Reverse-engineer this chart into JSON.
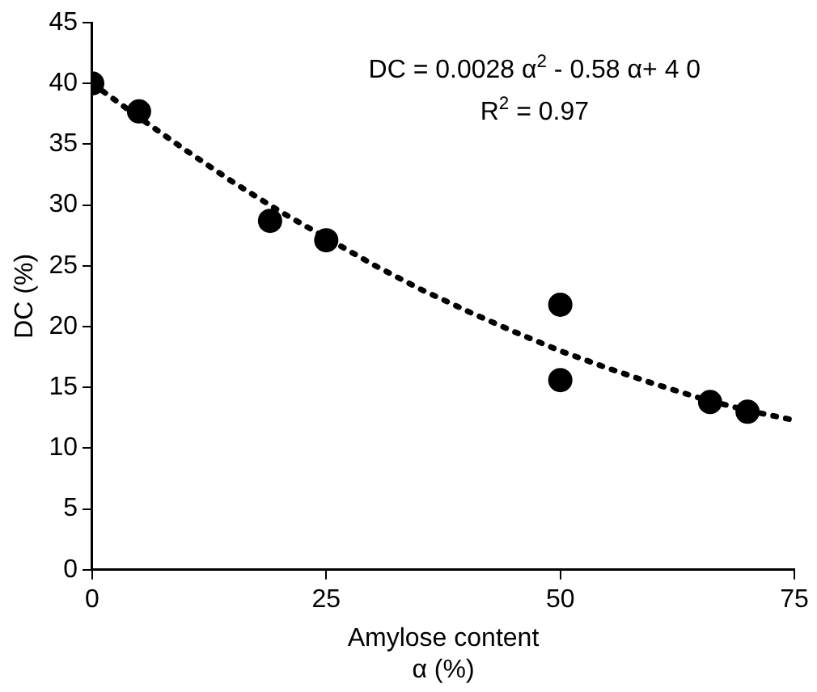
{
  "chart_data": {
    "type": "scatter",
    "xlabel": "Amylose content\nα (%)",
    "ylabel": "DC (%)",
    "annotations": [
      "DC = 0.0028 α$^{2}$ - 0.58 α+ 4 0",
      "R$^{2}$ = 0.97"
    ],
    "series": [
      {
        "type": "scatter",
        "color": "#000000",
        "marker": "circle",
        "x": [
          0,
          5,
          19,
          25,
          50,
          50,
          66,
          70
        ],
        "values": [
          40,
          37.7,
          28.7,
          27.1,
          21.8,
          15.6,
          13.8,
          13
        ]
      },
      {
        "type": "line",
        "color": "#000000",
        "marker": "none",
        "line_style": "dotted",
        "x": [
          0,
          5,
          10,
          15,
          20,
          25,
          30,
          35,
          40,
          45,
          50,
          55,
          60,
          65,
          70,
          75
        ],
        "values": [
          40,
          37.2,
          34.5,
          31.9,
          29.5,
          27.3,
          25.1,
          23.1,
          21.3,
          19.6,
          18,
          16.6,
          15.3,
          14.1,
          13.1,
          12.3
        ]
      }
    ],
    "xlim": [
      0,
      75
    ],
    "xticks": [
      0,
      25,
      50,
      75
    ],
    "ylim": [
      0,
      45
    ],
    "yticks": [
      0,
      5,
      10,
      15,
      20,
      25,
      30,
      35,
      40,
      45
    ],
    "grid": false,
    "legend": false
  }
}
